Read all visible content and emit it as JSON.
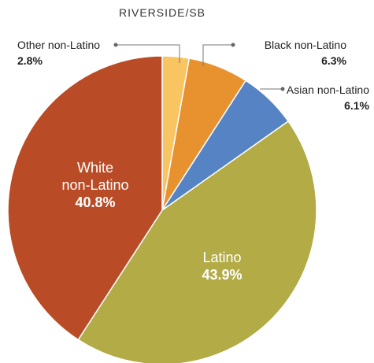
{
  "chart_data": {
    "type": "pie",
    "title": "RIVERSIDE/SB",
    "slices": [
      {
        "label": "Other non-Latino",
        "label_lines": [
          "Other non-Latino"
        ],
        "value": 2.8,
        "value_text": "2.8%",
        "color": "#f9c462",
        "label_position": "outside"
      },
      {
        "label": "Black non-Latino",
        "label_lines": [
          "Black non-Latino"
        ],
        "value": 6.3,
        "value_text": "6.3%",
        "color": "#e8922f",
        "label_position": "outside"
      },
      {
        "label": "Asian non-Latino",
        "label_lines": [
          "Asian non-Latino"
        ],
        "value": 6.1,
        "value_text": "6.1%",
        "color": "#5583c3",
        "label_position": "outside"
      },
      {
        "label": "Latino",
        "label_lines": [
          "Latino"
        ],
        "value": 43.9,
        "value_text": "43.9%",
        "color": "#b2ab46",
        "label_position": "inside"
      },
      {
        "label": "White non-Latino",
        "label_lines": [
          "White",
          "non-Latino"
        ],
        "value": 40.8,
        "value_text": "40.8%",
        "color": "#b94c27",
        "label_position": "inside"
      }
    ],
    "start": "12 o'clock",
    "direction": "clockwise"
  }
}
